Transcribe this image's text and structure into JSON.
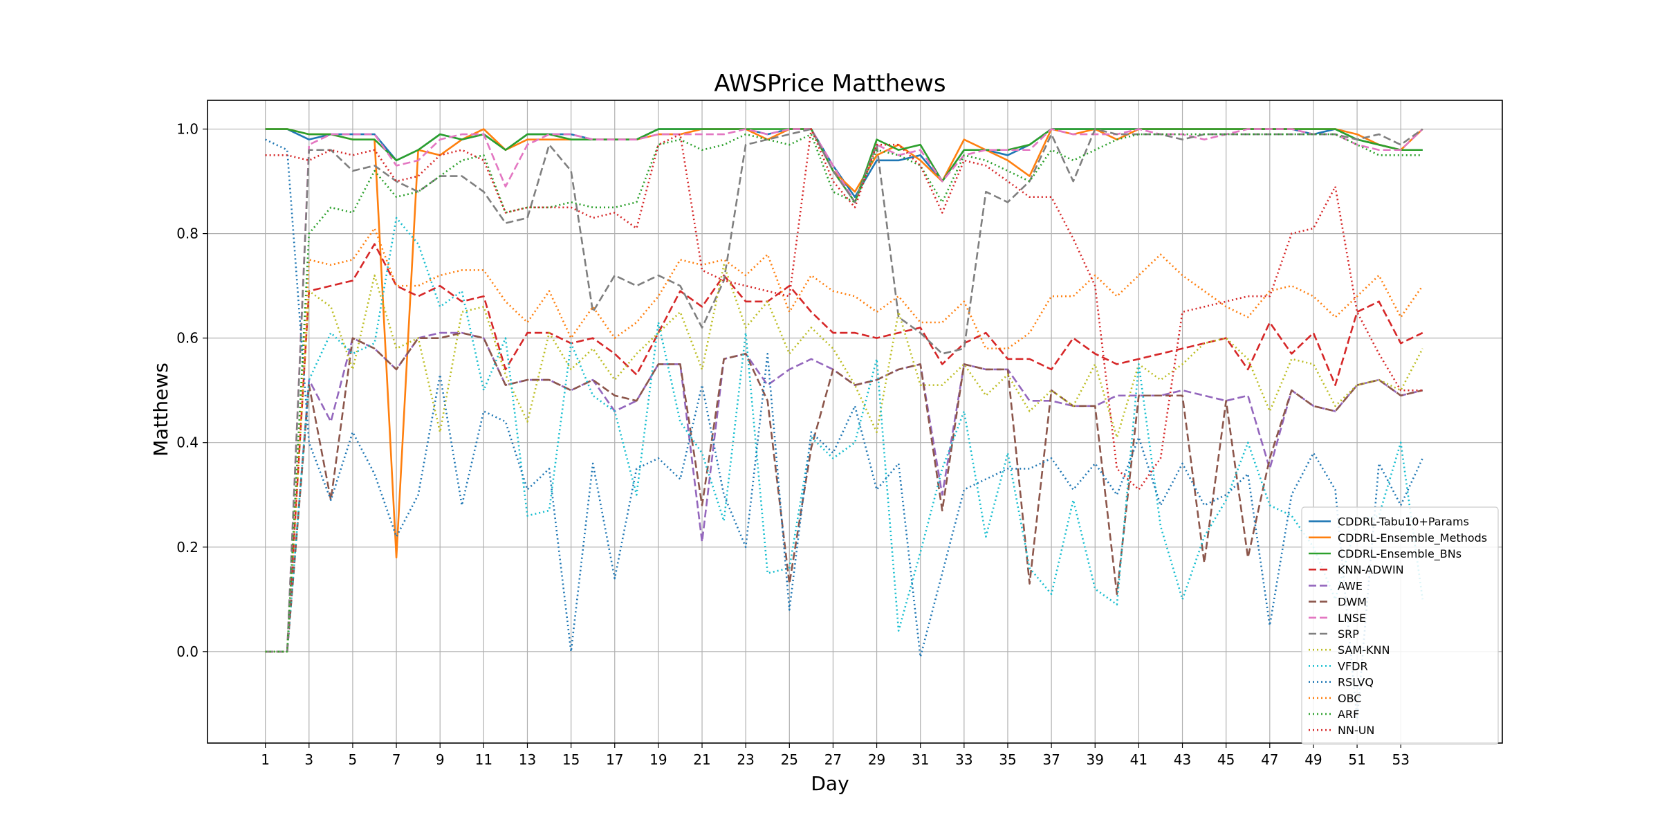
{
  "chart_data": {
    "type": "line",
    "title": "AWSPrice Matthews",
    "xlabel": "Day",
    "ylabel": "Matthews",
    "xlim": [
      -1.65,
      57.65
    ],
    "ylim": [
      -0.175,
      1.055
    ],
    "grid": true,
    "legend_placement": "lower-right",
    "x": [
      1,
      2,
      3,
      4,
      5,
      6,
      7,
      8,
      9,
      10,
      11,
      12,
      13,
      14,
      15,
      16,
      17,
      18,
      19,
      20,
      21,
      22,
      23,
      24,
      25,
      26,
      27,
      28,
      29,
      30,
      31,
      32,
      33,
      34,
      35,
      36,
      37,
      38,
      39,
      40,
      41,
      42,
      43,
      44,
      45,
      46,
      47,
      48,
      49,
      50,
      51,
      52,
      53,
      54
    ],
    "x_ticks": [
      1,
      3,
      5,
      7,
      9,
      11,
      13,
      15,
      17,
      19,
      21,
      23,
      25,
      27,
      29,
      31,
      33,
      35,
      37,
      39,
      41,
      43,
      45,
      47,
      49,
      51,
      53
    ],
    "y_ticks": [
      0.0,
      0.2,
      0.4,
      0.6,
      0.8,
      1.0
    ],
    "y_tick_labels": [
      "0.0",
      "0.2",
      "0.4",
      "0.6",
      "0.8",
      "1.0"
    ],
    "series": [
      {
        "name": "CDDRL-Tabu10+Params",
        "color": "#1f77b4",
        "style": "solid",
        "values": [
          1.0,
          1.0,
          0.98,
          0.99,
          0.99,
          0.99,
          0.94,
          0.96,
          0.99,
          0.98,
          0.99,
          0.96,
          0.99,
          0.99,
          0.99,
          0.98,
          0.98,
          0.98,
          1.0,
          1.0,
          1.0,
          1.0,
          1.0,
          0.99,
          1.0,
          1.0,
          0.93,
          0.87,
          0.94,
          0.94,
          0.95,
          0.9,
          0.96,
          0.96,
          0.95,
          0.97,
          1.0,
          1.0,
          1.0,
          1.0,
          1.0,
          1.0,
          1.0,
          1.0,
          1.0,
          1.0,
          1.0,
          1.0,
          0.99,
          1.0,
          0.98,
          0.97,
          0.96,
          0.96
        ]
      },
      {
        "name": "CDDRL-Ensemble_Methods",
        "color": "#ff7f0e",
        "style": "solid",
        "values": [
          1.0,
          1.0,
          0.99,
          0.99,
          0.98,
          0.98,
          0.18,
          0.96,
          0.95,
          0.98,
          1.0,
          0.96,
          0.98,
          0.98,
          0.98,
          0.98,
          0.98,
          0.98,
          0.99,
          0.99,
          1.0,
          1.0,
          1.0,
          0.98,
          1.0,
          1.0,
          0.92,
          0.88,
          0.95,
          0.97,
          0.94,
          0.9,
          0.98,
          0.96,
          0.94,
          0.91,
          1.0,
          0.99,
          1.0,
          0.98,
          1.0,
          1.0,
          1.0,
          1.0,
          1.0,
          1.0,
          1.0,
          1.0,
          1.0,
          1.0,
          0.99,
          0.97,
          0.96,
          1.0
        ]
      },
      {
        "name": "CDDRL-Ensemble_BNs",
        "color": "#2ca02c",
        "style": "solid",
        "values": [
          1.0,
          1.0,
          0.99,
          0.99,
          0.98,
          0.98,
          0.94,
          0.96,
          0.99,
          0.98,
          0.99,
          0.96,
          0.99,
          0.99,
          0.98,
          0.98,
          0.98,
          0.98,
          1.0,
          1.0,
          1.0,
          1.0,
          1.0,
          1.0,
          1.0,
          1.0,
          0.92,
          0.86,
          0.98,
          0.96,
          0.97,
          0.9,
          0.96,
          0.96,
          0.96,
          0.97,
          1.0,
          1.0,
          1.0,
          1.0,
          1.0,
          1.0,
          1.0,
          1.0,
          1.0,
          1.0,
          1.0,
          1.0,
          1.0,
          1.0,
          0.98,
          0.97,
          0.96,
          0.96
        ]
      },
      {
        "name": "KNN-ADWIN",
        "color": "#d62728",
        "style": "dashed",
        "values": [
          0.0,
          0.0,
          0.69,
          0.7,
          0.71,
          0.78,
          0.7,
          0.68,
          0.7,
          0.67,
          0.68,
          0.54,
          0.61,
          0.61,
          0.59,
          0.6,
          0.57,
          0.53,
          0.61,
          0.69,
          0.66,
          0.72,
          0.67,
          0.67,
          0.7,
          0.65,
          0.61,
          0.61,
          0.6,
          0.61,
          0.62,
          0.55,
          0.59,
          0.61,
          0.56,
          0.56,
          0.54,
          0.6,
          0.57,
          0.55,
          0.56,
          0.57,
          0.58,
          0.59,
          0.6,
          0.54,
          0.63,
          0.57,
          0.61,
          0.51,
          0.65,
          0.67,
          0.59,
          0.61
        ]
      },
      {
        "name": "AWE",
        "color": "#9467bd",
        "style": "dashed",
        "values": [
          0.0,
          0.0,
          0.52,
          0.44,
          0.6,
          0.58,
          0.54,
          0.6,
          0.61,
          0.61,
          0.6,
          0.51,
          0.52,
          0.52,
          0.5,
          0.52,
          0.46,
          0.48,
          0.55,
          0.55,
          0.21,
          0.56,
          0.57,
          0.51,
          0.54,
          0.56,
          0.54,
          0.51,
          0.52,
          0.54,
          0.55,
          0.3,
          0.55,
          0.54,
          0.54,
          0.48,
          0.48,
          0.47,
          0.47,
          0.49,
          0.49,
          0.49,
          0.5,
          0.49,
          0.48,
          0.49,
          0.35,
          0.5,
          0.47,
          0.46,
          0.51,
          0.52,
          0.49,
          0.5
        ]
      },
      {
        "name": "DWM",
        "color": "#8c564b",
        "style": "dashed",
        "values": [
          0.0,
          0.0,
          0.51,
          0.29,
          0.6,
          0.58,
          0.54,
          0.6,
          0.6,
          0.61,
          0.6,
          0.51,
          0.52,
          0.52,
          0.5,
          0.52,
          0.49,
          0.48,
          0.55,
          0.55,
          0.28,
          0.56,
          0.57,
          0.48,
          0.13,
          0.39,
          0.54,
          0.51,
          0.52,
          0.54,
          0.55,
          0.27,
          0.55,
          0.54,
          0.54,
          0.13,
          0.5,
          0.47,
          0.47,
          0.11,
          0.49,
          0.49,
          0.49,
          0.17,
          0.48,
          0.18,
          0.37,
          0.5,
          0.47,
          0.46,
          0.51,
          0.52,
          0.49,
          0.5
        ]
      },
      {
        "name": "LNSE",
        "color": "#e377c2",
        "style": "dashed",
        "values": [
          0.0,
          0.0,
          0.97,
          0.99,
          0.99,
          0.99,
          0.93,
          0.94,
          0.98,
          0.99,
          0.99,
          0.89,
          0.97,
          0.99,
          0.99,
          0.98,
          0.98,
          0.98,
          0.99,
          0.99,
          0.99,
          0.99,
          1.0,
          0.99,
          1.0,
          1.0,
          0.93,
          0.86,
          0.97,
          0.95,
          0.96,
          0.9,
          0.95,
          0.96,
          0.96,
          0.96,
          1.0,
          0.99,
          0.99,
          0.99,
          1.0,
          0.99,
          0.99,
          0.98,
          0.99,
          1.0,
          1.0,
          1.0,
          0.99,
          0.99,
          0.97,
          0.96,
          0.96,
          1.0
        ]
      },
      {
        "name": "SRP",
        "color": "#7f7f7f",
        "style": "dashed",
        "values": [
          0.0,
          0.0,
          0.96,
          0.96,
          0.92,
          0.93,
          0.9,
          0.88,
          0.91,
          0.91,
          0.88,
          0.82,
          0.83,
          0.97,
          0.92,
          0.65,
          0.72,
          0.7,
          0.72,
          0.7,
          0.62,
          0.71,
          0.97,
          0.98,
          0.99,
          1.0,
          0.92,
          0.86,
          0.97,
          0.64,
          0.61,
          0.57,
          0.58,
          0.88,
          0.86,
          0.9,
          0.99,
          0.9,
          1.0,
          0.99,
          0.99,
          0.99,
          0.98,
          0.99,
          0.99,
          0.99,
          0.99,
          0.99,
          0.99,
          0.99,
          0.98,
          0.99,
          0.97,
          1.0
        ]
      },
      {
        "name": "SAM-KNN",
        "color": "#bcbd22",
        "style": "dotted",
        "values": [
          0.0,
          0.0,
          0.69,
          0.66,
          0.54,
          0.72,
          0.58,
          0.6,
          0.42,
          0.65,
          0.66,
          0.53,
          0.44,
          0.61,
          0.54,
          0.58,
          0.52,
          0.57,
          0.61,
          0.65,
          0.54,
          0.74,
          0.62,
          0.67,
          0.57,
          0.62,
          0.58,
          0.51,
          0.42,
          0.65,
          0.51,
          0.51,
          0.55,
          0.49,
          0.53,
          0.46,
          0.5,
          0.47,
          0.55,
          0.41,
          0.55,
          0.52,
          0.55,
          0.59,
          0.6,
          0.56,
          0.46,
          0.56,
          0.55,
          0.47,
          0.51,
          0.52,
          0.5,
          0.58
        ]
      },
      {
        "name": "VFDR",
        "color": "#17becf",
        "style": "dotted",
        "values": [
          0.0,
          0.0,
          0.52,
          0.61,
          0.57,
          0.59,
          0.83,
          0.78,
          0.66,
          0.69,
          0.5,
          0.6,
          0.26,
          0.27,
          0.59,
          0.49,
          0.46,
          0.3,
          0.63,
          0.44,
          0.38,
          0.25,
          0.61,
          0.15,
          0.16,
          0.41,
          0.37,
          0.4,
          0.56,
          0.04,
          0.19,
          0.35,
          0.46,
          0.22,
          0.38,
          0.16,
          0.11,
          0.29,
          0.12,
          0.09,
          0.55,
          0.24,
          0.1,
          0.22,
          0.29,
          0.4,
          0.28,
          0.26,
          0.2,
          0.1,
          0.25,
          0.26,
          0.4,
          0.1
        ]
      },
      {
        "name": "RSLVQ",
        "color": "#1f77b4",
        "style": "dotted",
        "values": [
          0.98,
          0.96,
          0.4,
          0.29,
          0.42,
          0.34,
          0.22,
          0.3,
          0.53,
          0.28,
          0.46,
          0.44,
          0.31,
          0.35,
          0.0,
          0.36,
          0.14,
          0.35,
          0.37,
          0.33,
          0.51,
          0.3,
          0.2,
          0.57,
          0.08,
          0.42,
          0.38,
          0.47,
          0.31,
          0.36,
          -0.01,
          0.15,
          0.31,
          0.33,
          0.35,
          0.35,
          0.37,
          0.31,
          0.36,
          0.3,
          0.41,
          0.28,
          0.36,
          0.28,
          0.3,
          0.34,
          0.05,
          0.3,
          0.38,
          0.31,
          -0.13,
          0.36,
          0.28,
          0.37
        ]
      },
      {
        "name": "OBC",
        "color": "#ff7f0e",
        "style": "dotted",
        "values": [
          0.0,
          0.0,
          0.75,
          0.74,
          0.75,
          0.81,
          0.7,
          0.7,
          0.72,
          0.73,
          0.73,
          0.67,
          0.63,
          0.69,
          0.6,
          0.66,
          0.6,
          0.63,
          0.68,
          0.75,
          0.74,
          0.75,
          0.72,
          0.76,
          0.65,
          0.72,
          0.69,
          0.68,
          0.65,
          0.68,
          0.63,
          0.63,
          0.67,
          0.58,
          0.58,
          0.61,
          0.68,
          0.68,
          0.72,
          0.68,
          0.72,
          0.76,
          0.72,
          0.69,
          0.66,
          0.64,
          0.69,
          0.7,
          0.68,
          0.64,
          0.68,
          0.72,
          0.64,
          0.7
        ]
      },
      {
        "name": "ARF",
        "color": "#2ca02c",
        "style": "dotted",
        "values": [
          0.0,
          0.0,
          0.8,
          0.85,
          0.84,
          0.92,
          0.87,
          0.88,
          0.91,
          0.94,
          0.95,
          0.84,
          0.85,
          0.85,
          0.86,
          0.85,
          0.85,
          0.86,
          0.97,
          0.98,
          0.96,
          0.97,
          0.99,
          0.98,
          0.97,
          0.99,
          0.88,
          0.86,
          0.96,
          0.95,
          0.93,
          0.86,
          0.95,
          0.94,
          0.92,
          0.9,
          0.96,
          0.94,
          0.96,
          0.98,
          0.99,
          0.99,
          0.99,
          0.99,
          0.99,
          0.99,
          0.99,
          0.99,
          0.99,
          0.99,
          0.97,
          0.95,
          0.95,
          0.95
        ]
      },
      {
        "name": "NN-UN",
        "color": "#d62728",
        "style": "dotted",
        "values": [
          0.95,
          0.95,
          0.94,
          0.96,
          0.95,
          0.96,
          0.9,
          0.91,
          0.95,
          0.96,
          0.94,
          0.84,
          0.85,
          0.85,
          0.85,
          0.83,
          0.84,
          0.81,
          0.97,
          0.99,
          0.73,
          0.71,
          0.7,
          0.69,
          0.68,
          1.0,
          0.9,
          0.85,
          0.97,
          0.97,
          0.93,
          0.84,
          0.94,
          0.93,
          0.9,
          0.87,
          0.87,
          0.79,
          0.7,
          0.35,
          0.31,
          0.37,
          0.65,
          0.66,
          0.67,
          0.68,
          0.68,
          0.8,
          0.81,
          0.89,
          0.65,
          0.57,
          0.5,
          0.5
        ]
      }
    ]
  }
}
